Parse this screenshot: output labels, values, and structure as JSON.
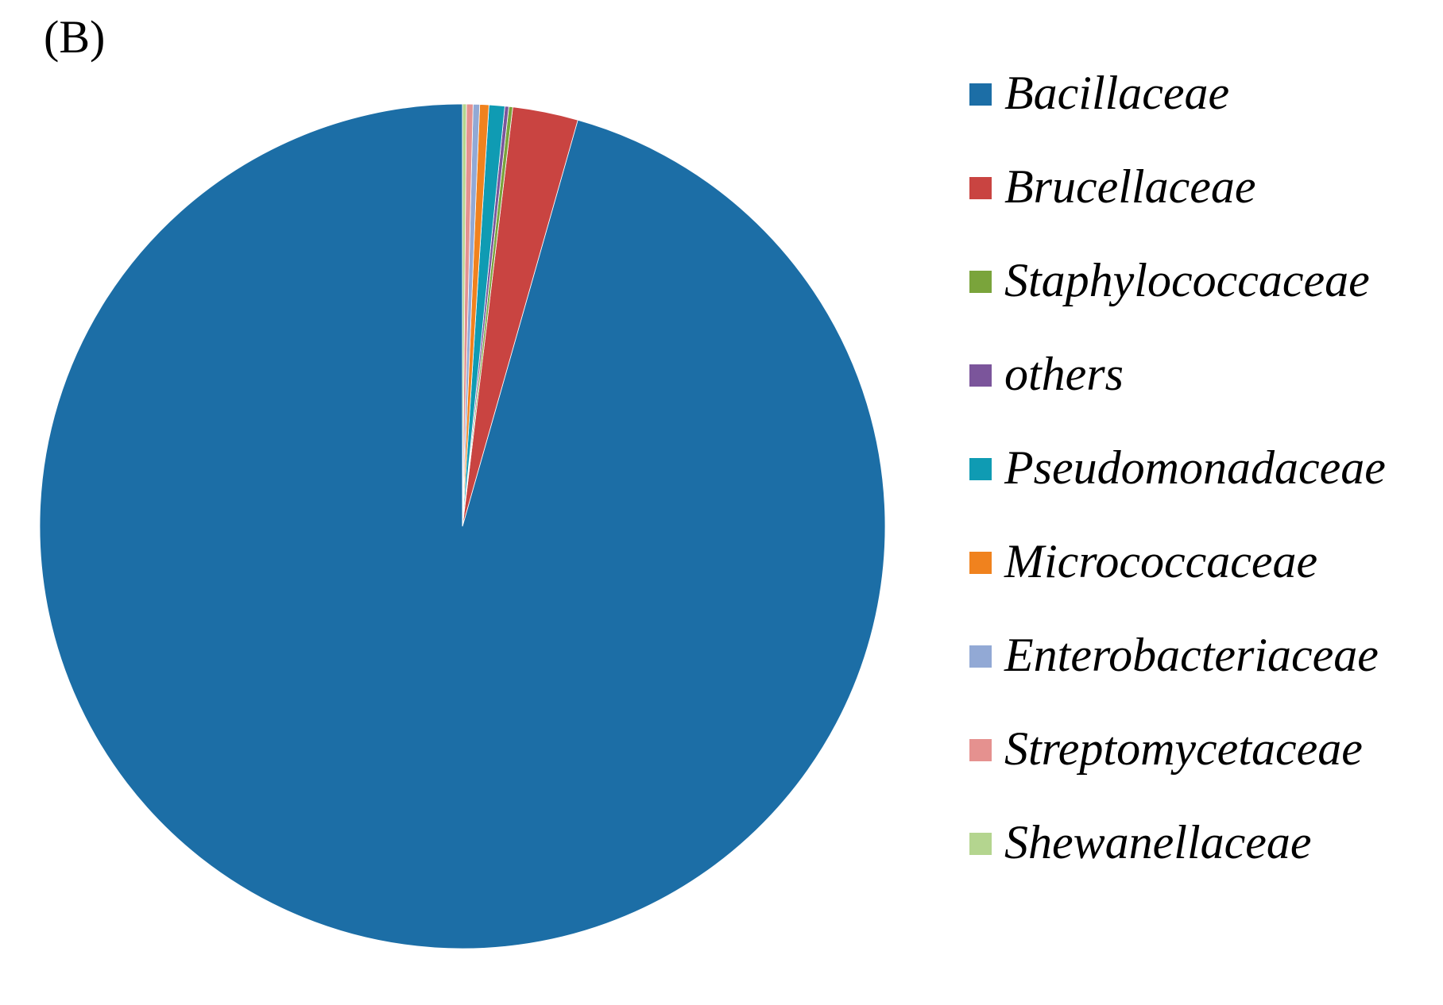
{
  "panel_label": "(B)",
  "chart_data": {
    "type": "pie",
    "start_angle_deg": 0,
    "direction": "counterclockwise",
    "legend_position": "right",
    "slices": [
      {
        "label": "Bacillaceae",
        "value": 95.6,
        "color": "#1c6ea6"
      },
      {
        "label": "Brucellaceae",
        "value": 2.5,
        "color": "#c94441"
      },
      {
        "label": "Staphylococcaceae",
        "value": 0.15,
        "color": "#7aa43b"
      },
      {
        "label": "others",
        "value": 0.15,
        "color": "#7b559b"
      },
      {
        "label": "Pseudomonadaceae",
        "value": 0.6,
        "color": "#0f9bb3"
      },
      {
        "label": "Micrococcaceae",
        "value": 0.35,
        "color": "#f0821e"
      },
      {
        "label": "Enterobacteriaceae",
        "value": 0.25,
        "color": "#92a9d5"
      },
      {
        "label": "Streptomycetaceae",
        "value": 0.25,
        "color": "#e5918f"
      },
      {
        "label": "Shewanellaceae",
        "value": 0.15,
        "color": "#b4d58f"
      }
    ]
  }
}
